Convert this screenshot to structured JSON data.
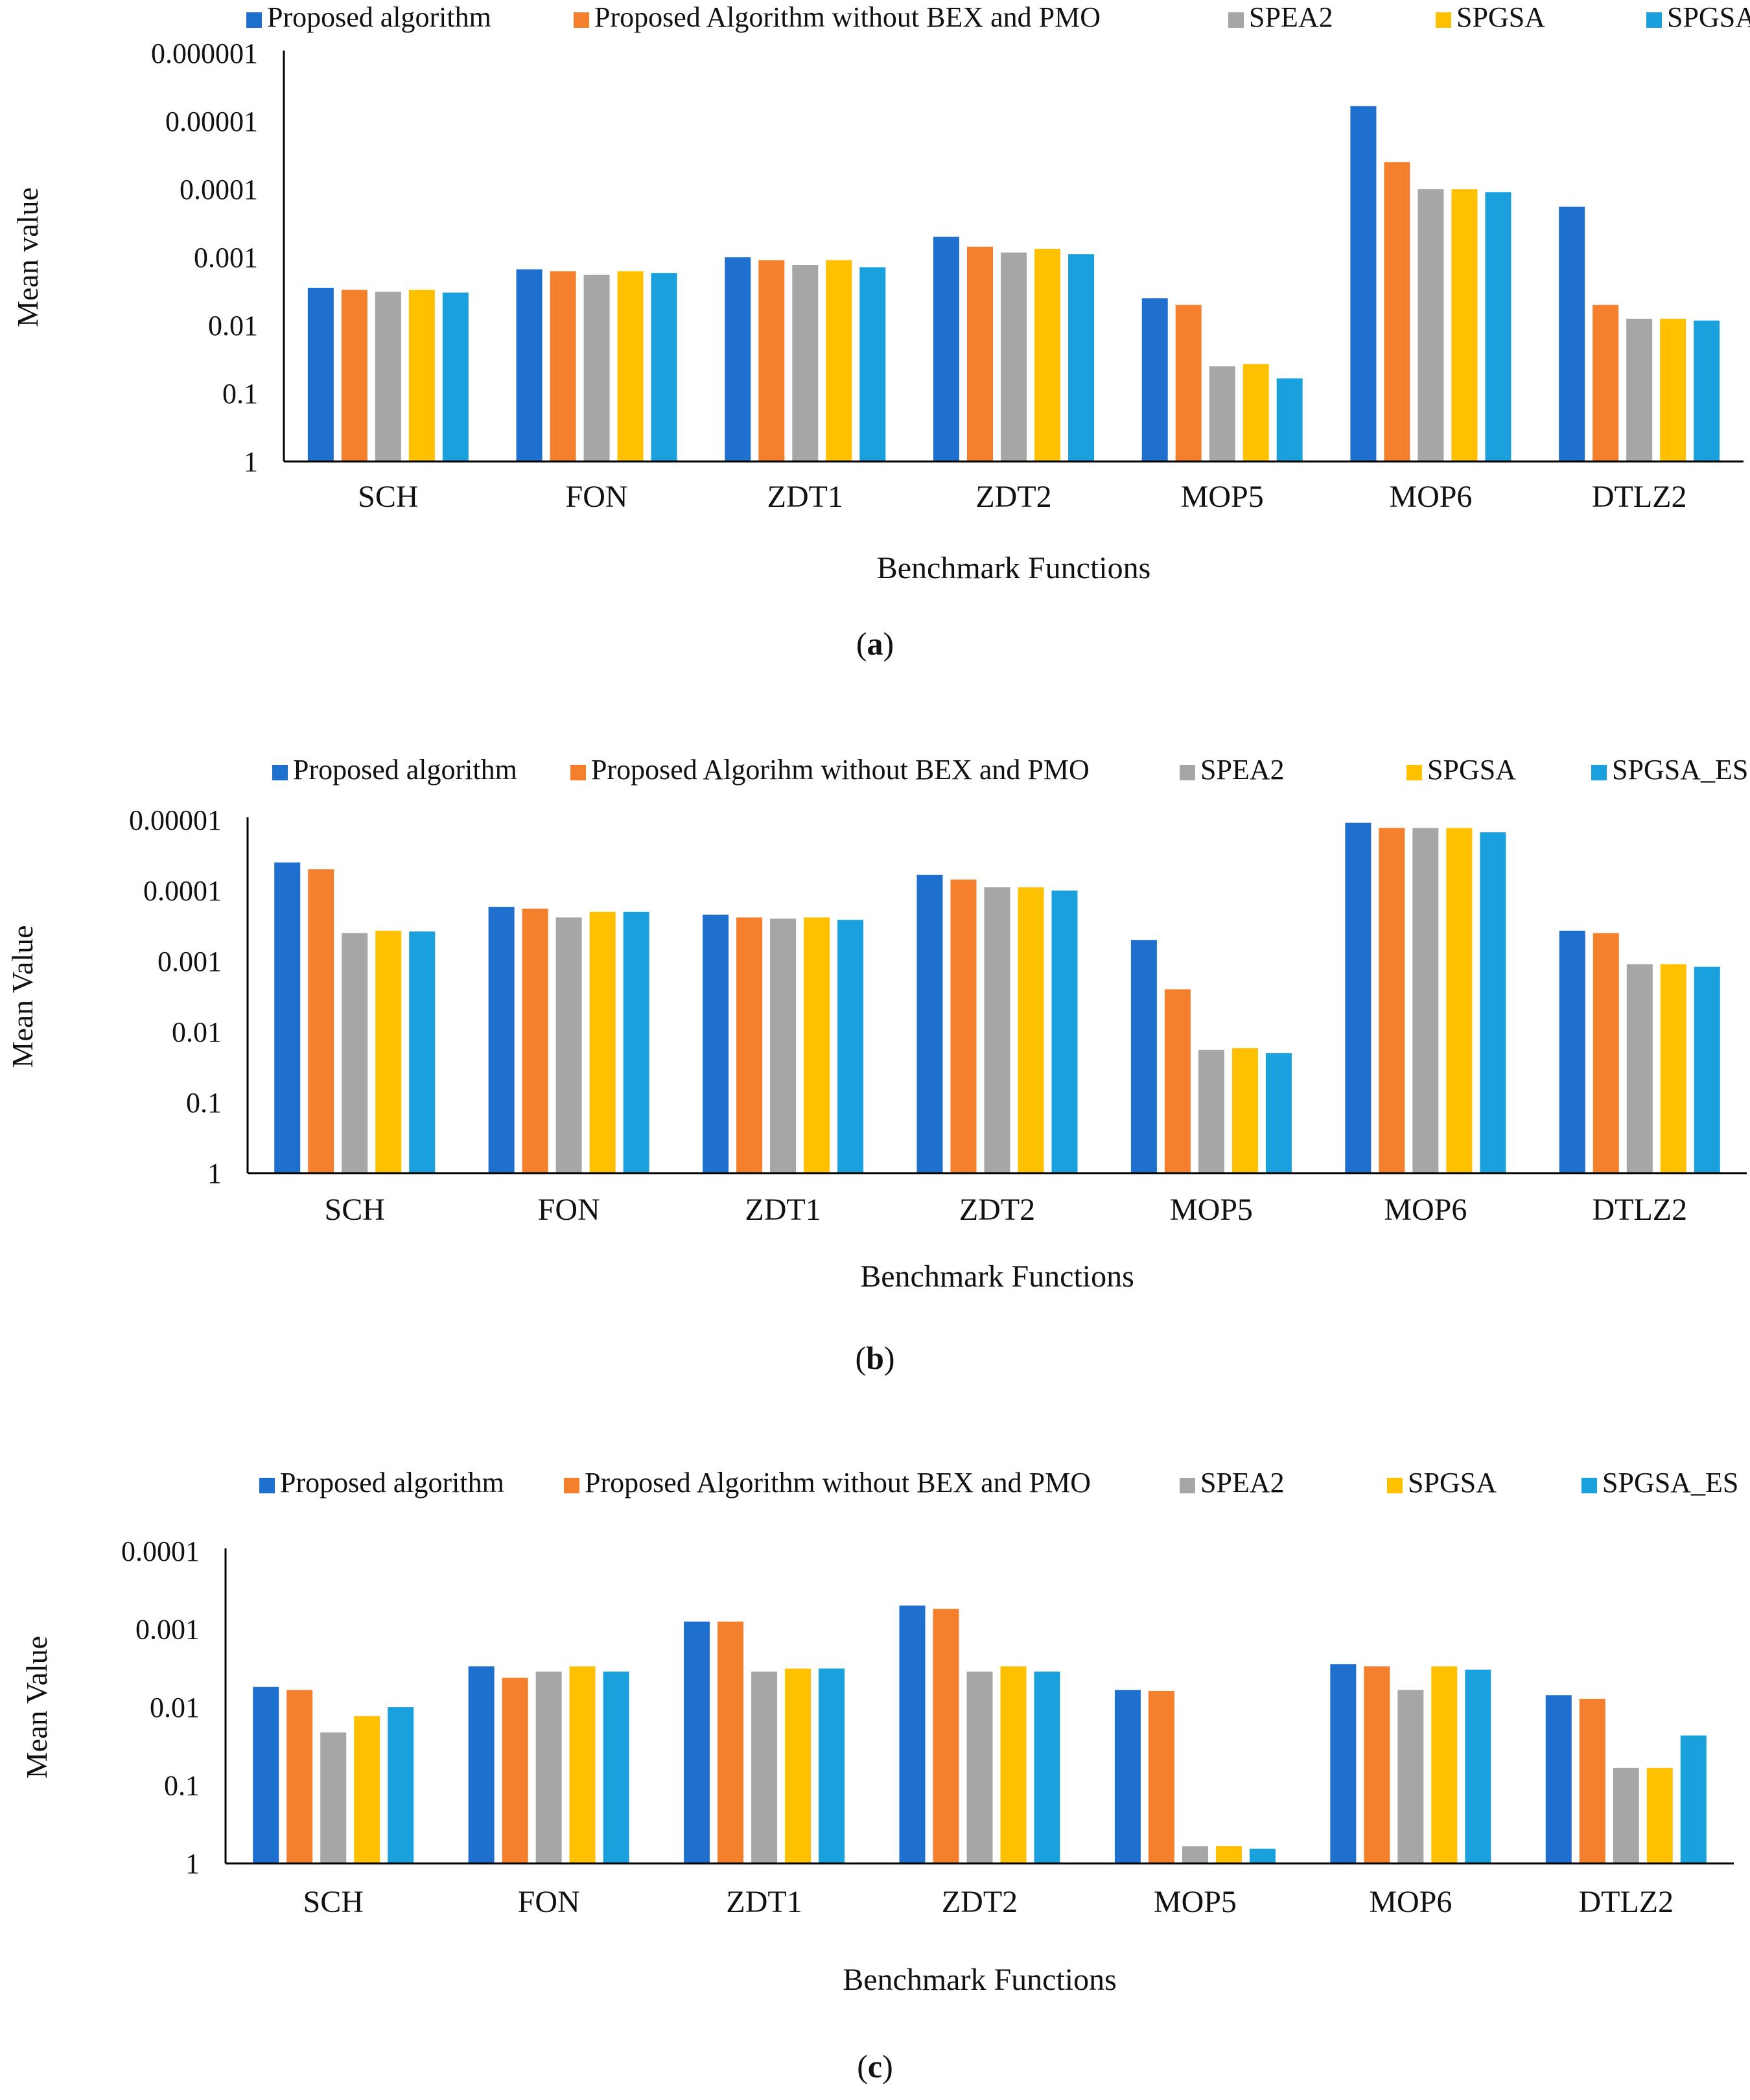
{
  "chart_data": [
    {
      "id": "a",
      "type": "bar",
      "scale": "log-reversed",
      "caption_letter": "a",
      "xlabel": "Benchmark Functions",
      "ylabel": "Mean value",
      "categories": [
        "SCH",
        "FON",
        "ZDT1",
        "ZDT2",
        "MOP5",
        "MOP6",
        "DTLZ2"
      ],
      "ylim": [
        1,
        1e-06
      ],
      "yticks": [
        "1",
        "0.1",
        "0.01",
        "0.001",
        "0.0001",
        "0.00001",
        "0.000001"
      ],
      "legend": [
        "Proposed algorithm",
        "Proposed Algorithm without BEX and PMO",
        "SPEA2",
        "SPGSA",
        "SPGSA_ES"
      ],
      "series": [
        {
          "name": "Proposed algorithm",
          "values": [
            0.0028,
            0.0015,
            0.001,
            0.0005,
            0.004,
            6e-06,
            0.00018
          ]
        },
        {
          "name": "Proposed Algorithm without BEX and PMO",
          "values": [
            0.003,
            0.0016,
            0.0011,
            0.0007,
            0.005,
            4e-05,
            0.005
          ]
        },
        {
          "name": "SPEA2",
          "values": [
            0.0032,
            0.0018,
            0.0013,
            0.00085,
            0.04,
            0.0001,
            0.008
          ]
        },
        {
          "name": "SPGSA",
          "values": [
            0.003,
            0.0016,
            0.0011,
            0.00075,
            0.037,
            0.0001,
            0.008
          ]
        },
        {
          "name": "SPGSA_ES",
          "values": [
            0.0033,
            0.0017,
            0.0014,
            0.0009,
            0.06,
            0.00011,
            0.0085
          ]
        }
      ]
    },
    {
      "id": "b",
      "type": "bar",
      "scale": "log-reversed",
      "caption_letter": "b",
      "xlabel": "Benchmark Functions",
      "ylabel": "Mean Value",
      "categories": [
        "SCH",
        "FON",
        "ZDT1",
        "ZDT2",
        "MOP5",
        "MOP6",
        "DTLZ2"
      ],
      "ylim": [
        1,
        1e-05
      ],
      "yticks": [
        "1",
        "0.1",
        "0.01",
        "0.001",
        "0.0001",
        "0.00001"
      ],
      "legend": [
        "Proposed algorithm",
        "Proposed Algorihm without BEX and PMO",
        "SPEA2",
        "SPGSA",
        "SPGSA_ES"
      ],
      "series": [
        {
          "name": "Proposed algorithm",
          "values": [
            4e-05,
            0.00017,
            0.00022,
            6e-05,
            0.0005,
            1.1e-05,
            0.00037
          ]
        },
        {
          "name": "Proposed Algorihm without BEX and PMO",
          "values": [
            5e-05,
            0.00018,
            0.00024,
            7e-05,
            0.0025,
            1.3e-05,
            0.0004
          ]
        },
        {
          "name": "SPEA2",
          "values": [
            0.0004,
            0.00024,
            0.00025,
            9e-05,
            0.018,
            1.3e-05,
            0.0011
          ]
        },
        {
          "name": "SPGSA",
          "values": [
            0.00037,
            0.0002,
            0.00024,
            9e-05,
            0.017,
            1.3e-05,
            0.0011
          ]
        },
        {
          "name": "SPGSA_ES",
          "values": [
            0.00038,
            0.0002,
            0.00026,
            0.0001,
            0.02,
            1.5e-05,
            0.0012
          ]
        }
      ]
    },
    {
      "id": "c",
      "type": "bar",
      "scale": "log-reversed",
      "caption_letter": "c",
      "xlabel": "Benchmark Functions",
      "ylabel": "Mean Value",
      "categories": [
        "SCH",
        "FON",
        "ZDT1",
        "ZDT2",
        "MOP5",
        "MOP6",
        "DTLZ2"
      ],
      "ylim": [
        1,
        0.0001
      ],
      "yticks": [
        "1",
        "0.1",
        "0.01",
        "0.001",
        "0.0001"
      ],
      "legend": [
        "Proposed algorithm",
        "Proposed Algorithm without BEX and PMO",
        "SPEA2",
        "SPGSA",
        "SPGSA_ES"
      ],
      "series": [
        {
          "name": "Proposed algorithm",
          "values": [
            0.0055,
            0.003,
            0.0008,
            0.0005,
            0.006,
            0.0028,
            0.007
          ]
        },
        {
          "name": "Proposed Algorithm without BEX and PMO",
          "values": [
            0.006,
            0.0042,
            0.0008,
            0.00055,
            0.0062,
            0.003,
            0.0078
          ]
        },
        {
          "name": "SPEA2",
          "values": [
            0.021,
            0.0035,
            0.0035,
            0.0035,
            0.6,
            0.006,
            0.06
          ]
        },
        {
          "name": "SPGSA",
          "values": [
            0.013,
            0.003,
            0.0032,
            0.003,
            0.6,
            0.003,
            0.06
          ]
        },
        {
          "name": "SPGSA_ES",
          "values": [
            0.01,
            0.0035,
            0.0032,
            0.0035,
            0.65,
            0.0033,
            0.023
          ]
        }
      ]
    }
  ],
  "colors": [
    "#1f6fce",
    "#f47f2c",
    "#a6a6a6",
    "#ffc000",
    "#1aa0dc"
  ]
}
